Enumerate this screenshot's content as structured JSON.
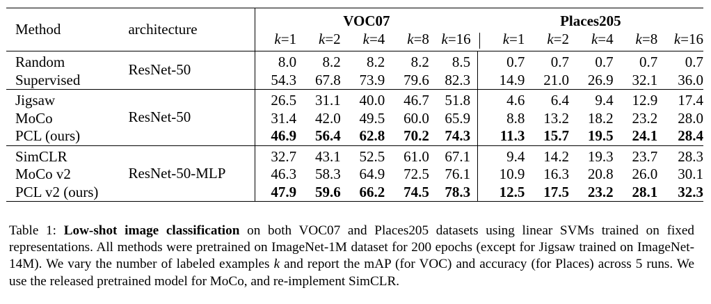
{
  "table": {
    "header": {
      "method": "Method",
      "architecture": "architecture",
      "group_voc": "VOC07",
      "group_places": "Places205",
      "k_var": "k",
      "k_values": [
        "=1",
        "=2",
        "=4",
        "=8",
        "=16"
      ]
    },
    "blocks": [
      {
        "architecture": "ResNet-50",
        "rows": [
          {
            "method": "Random",
            "voc": [
              "8.0",
              "8.2",
              "8.2",
              "8.2",
              "8.5"
            ],
            "places": [
              "0.7",
              "0.7",
              "0.7",
              "0.7",
              "0.7"
            ],
            "bold": false
          },
          {
            "method": "Supervised",
            "voc": [
              "54.3",
              "67.8",
              "73.9",
              "79.6",
              "82.3"
            ],
            "places": [
              "14.9",
              "21.0",
              "26.9",
              "32.1",
              "36.0"
            ],
            "bold": false
          }
        ]
      },
      {
        "architecture": "ResNet-50",
        "rows": [
          {
            "method": "Jigsaw",
            "voc": [
              "26.5",
              "31.1",
              "40.0",
              "46.7",
              "51.8"
            ],
            "places": [
              "4.6",
              "6.4",
              "9.4",
              "12.9",
              "17.4"
            ],
            "bold": false
          },
          {
            "method": "MoCo",
            "voc": [
              "31.4",
              "42.0",
              "49.5",
              "60.0",
              "65.9"
            ],
            "places": [
              "8.8",
              "13.2",
              "18.2",
              "23.2",
              "28.0"
            ],
            "bold": false
          },
          {
            "method": "PCL (ours)",
            "voc": [
              "46.9",
              "56.4",
              "62.8",
              "70.2",
              "74.3"
            ],
            "places": [
              "11.3",
              "15.7",
              "19.5",
              "24.1",
              "28.4"
            ],
            "bold": true
          }
        ]
      },
      {
        "architecture": "ResNet-50-MLP",
        "rows": [
          {
            "method": "SimCLR",
            "voc": [
              "32.7",
              "43.1",
              "52.5",
              "61.0",
              "67.1"
            ],
            "places": [
              "9.4",
              "14.2",
              "19.3",
              "23.7",
              "28.3"
            ],
            "bold": false
          },
          {
            "method": "MoCo v2",
            "voc": [
              "46.3",
              "58.3",
              "64.9",
              "72.5",
              "76.1"
            ],
            "places": [
              "10.9",
              "16.3",
              "20.8",
              "26.0",
              "30.1"
            ],
            "bold": false
          },
          {
            "method": "PCL v2 (ours)",
            "voc": [
              "47.9",
              "59.6",
              "66.2",
              "74.5",
              "78.3"
            ],
            "places": [
              "12.5",
              "17.5",
              "23.2",
              "28.1",
              "32.3"
            ],
            "bold": true
          }
        ]
      }
    ]
  },
  "caption": {
    "label": "Table 1: ",
    "lead": "Low-shot image classification",
    "text_1": " on both VOC07 and Places205 datasets using linear SVMs trained on fixed representations. All methods were pretrained on ImageNet-1M dataset for 200 epochs (except for Jigsaw trained on ImageNet-14M). We vary the number of labeled examples ",
    "k": "k",
    "text_2": " and report the mAP (for VOC) and accuracy (for Places) across 5 runs. We use the released pretrained model for MoCo, and re-implement SimCLR."
  }
}
